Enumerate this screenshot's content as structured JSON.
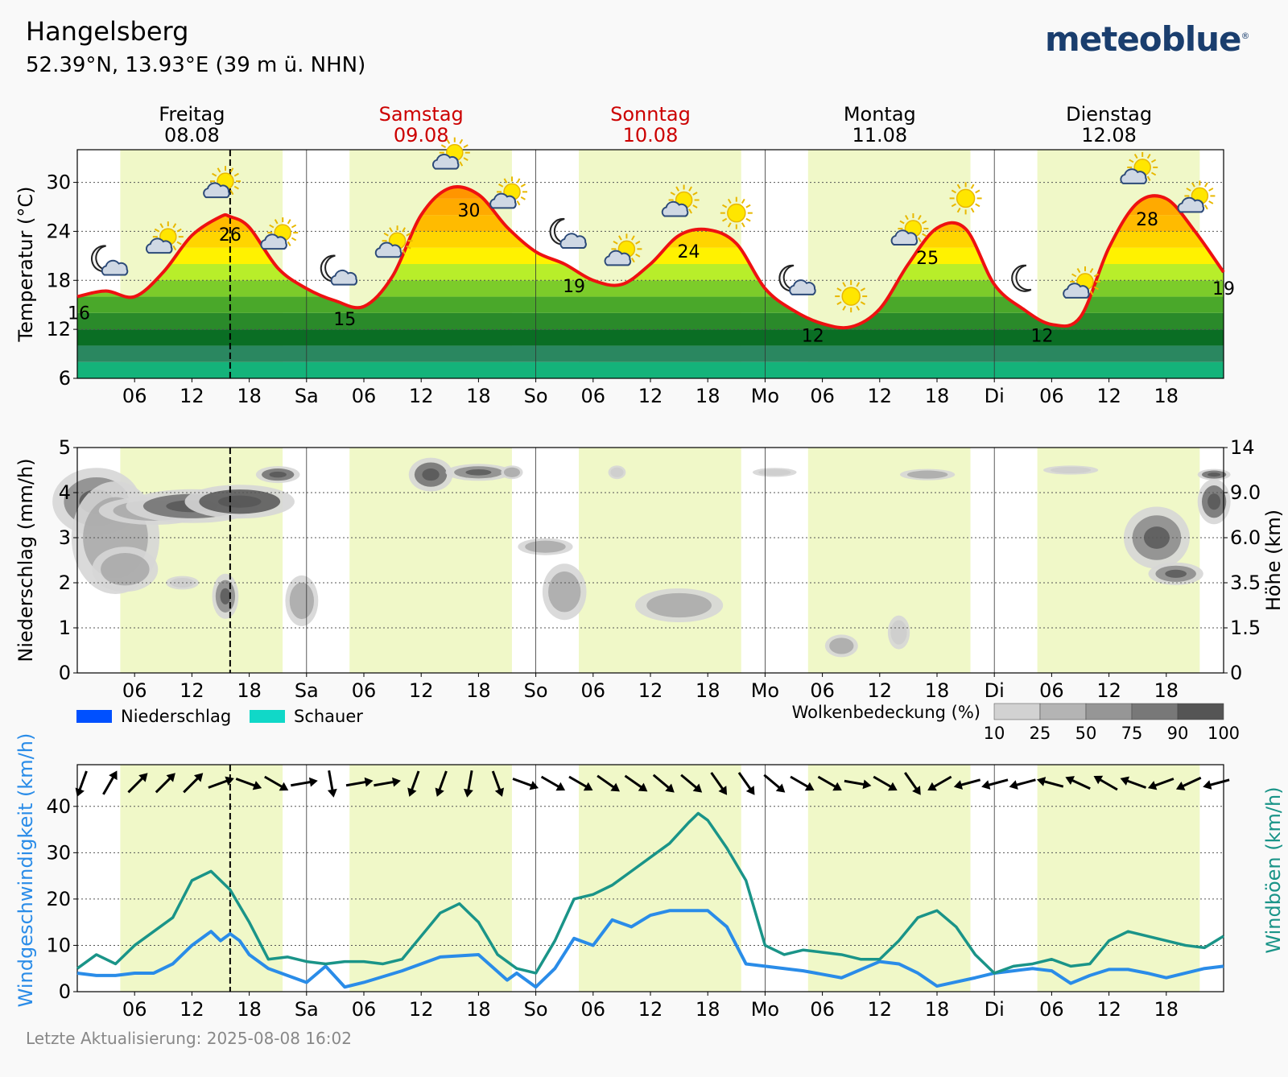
{
  "header": {
    "location": "Hangelsberg",
    "coordinates": "52.39°N, 13.93°E (39 m ü. NHN)",
    "logo": "meteoblue",
    "logo_mark": "®"
  },
  "footer": {
    "last_update": "Letzte Aktualisierung: 2025-08-08 16:02"
  },
  "colors": {
    "background": "#f9f9f9",
    "daylight": "#f0f8c8",
    "temp_line": "#ee1111",
    "weekend_label": "#cc0000",
    "wind_speed": "#2a8ce8",
    "wind_gust": "#1a9488",
    "precip": "#0050ff",
    "showers": "#10d8c8"
  },
  "days": [
    {
      "name": "Freitag",
      "date": "08.08",
      "weekend": false
    },
    {
      "name": "Samstag",
      "date": "09.08",
      "weekend": true
    },
    {
      "name": "Sonntag",
      "date": "10.08",
      "weekend": true
    },
    {
      "name": "Montag",
      "date": "11.08",
      "weekend": false
    },
    {
      "name": "Dienstag",
      "date": "12.08",
      "weekend": false
    }
  ],
  "x_tick_labels": [
    "06",
    "12",
    "18",
    "Sa",
    "06",
    "12",
    "18",
    "So",
    "06",
    "12",
    "18",
    "Mo",
    "06",
    "12",
    "18",
    "Di",
    "06",
    "12",
    "18"
  ],
  "now_marker_hour": 16,
  "daylight_hours": [
    [
      4.5,
      21.5
    ]
  ],
  "chart_data": [
    {
      "type": "line",
      "id": "temperature",
      "ylabel": "Temperatur (°C)",
      "ylim": [
        6,
        34
      ],
      "yticks": [
        6,
        12,
        18,
        24,
        30
      ],
      "x_unit": "hours since Friday 00:00",
      "x": [
        0,
        3,
        6,
        9,
        12,
        15,
        16,
        18,
        21,
        24,
        27,
        30,
        33,
        36,
        39,
        42,
        45,
        48,
        51,
        54,
        57,
        60,
        63,
        66,
        69,
        72,
        75,
        78,
        81,
        84,
        87,
        90,
        93,
        96,
        99,
        102,
        105,
        108,
        111,
        114,
        117,
        120
      ],
      "values": [
        16,
        16.7,
        16,
        19,
        23.5,
        25.8,
        25.8,
        24.5,
        19.5,
        17,
        15.5,
        14.8,
        18.5,
        26,
        29.3,
        28.5,
        24.5,
        21.5,
        20,
        18,
        17.5,
        20,
        23.5,
        24.2,
        22.5,
        17,
        14.3,
        12.7,
        12.3,
        14.5,
        20,
        24.4,
        24.3,
        17.5,
        14.5,
        12.6,
        13.5,
        22,
        27.5,
        28,
        24,
        19
      ],
      "labels": [
        {
          "hour": 0,
          "text": "16"
        },
        {
          "hour": 16,
          "text": "26"
        },
        {
          "hour": 28,
          "text": "15"
        },
        {
          "hour": 41,
          "text": "30"
        },
        {
          "hour": 52,
          "text": "19"
        },
        {
          "hour": 64,
          "text": "24"
        },
        {
          "hour": 77,
          "text": "12"
        },
        {
          "hour": 89,
          "text": "25"
        },
        {
          "hour": 101,
          "text": "12"
        },
        {
          "hour": 112,
          "text": "28"
        },
        {
          "hour": 120,
          "text": "19"
        }
      ],
      "icons": [
        {
          "hour": 3,
          "kind": "moon-cloud"
        },
        {
          "hour": 9,
          "kind": "sun-cloud"
        },
        {
          "hour": 15,
          "kind": "sun-cloud"
        },
        {
          "hour": 21,
          "kind": "sun-cloud"
        },
        {
          "hour": 27,
          "kind": "moon-cloud"
        },
        {
          "hour": 33,
          "kind": "sun-cloud"
        },
        {
          "hour": 39,
          "kind": "sun-cloud"
        },
        {
          "hour": 45,
          "kind": "sun-cloud"
        },
        {
          "hour": 51,
          "kind": "moon-cloud"
        },
        {
          "hour": 57,
          "kind": "sun-cloud"
        },
        {
          "hour": 63,
          "kind": "sun-cloud"
        },
        {
          "hour": 69,
          "kind": "sun"
        },
        {
          "hour": 75,
          "kind": "moon-cloud"
        },
        {
          "hour": 81,
          "kind": "sun"
        },
        {
          "hour": 87,
          "kind": "sun-cloud"
        },
        {
          "hour": 93,
          "kind": "sun"
        },
        {
          "hour": 99,
          "kind": "moon"
        },
        {
          "hour": 105,
          "kind": "sun-cloud"
        },
        {
          "hour": 111,
          "kind": "sun-cloud"
        },
        {
          "hour": 117,
          "kind": "sun-cloud"
        }
      ],
      "color_bands": [
        {
          "from": 6,
          "to": 8,
          "color": "#14b37a"
        },
        {
          "from": 8,
          "to": 10,
          "color": "#2a8760"
        },
        {
          "from": 10,
          "to": 12,
          "color": "#0a6e24"
        },
        {
          "from": 12,
          "to": 14,
          "color": "#2a8a2a"
        },
        {
          "from": 14,
          "to": 16,
          "color": "#4aa82a"
        },
        {
          "from": 16,
          "to": 18,
          "color": "#7ccc2a"
        },
        {
          "from": 18,
          "to": 20,
          "color": "#b8ee2a"
        },
        {
          "from": 20,
          "to": 22,
          "color": "#fff200"
        },
        {
          "from": 22,
          "to": 24,
          "color": "#ffd500"
        },
        {
          "from": 24,
          "to": 26,
          "color": "#ffbb00"
        },
        {
          "from": 26,
          "to": 28,
          "color": "#ffaa00"
        },
        {
          "from": 28,
          "to": 30,
          "color": "#ff9500"
        }
      ]
    },
    {
      "type": "heatmap",
      "id": "precipitation-clouds",
      "ylabel": "Niederschlag (mm/h)",
      "ylabel_right": "Höhe (km)",
      "ylim": [
        0,
        5
      ],
      "yticks": [
        0,
        1,
        2,
        3,
        4,
        5
      ],
      "right_ticks": [
        "0",
        "1.5",
        "3.5",
        "6.0",
        "9.0",
        "14"
      ],
      "legend": [
        {
          "label": "Niederschlag",
          "color": "#0050ff"
        },
        {
          "label": "Schauer",
          "color": "#10d8c8"
        }
      ],
      "cloud_legend_title": "Wolkenbedeckung (%)",
      "cloud_scale": [
        "10",
        "25",
        "50",
        "75",
        "90",
        "100"
      ],
      "cloud_scale_colors": [
        "#d2d2d2",
        "#b4b4b4",
        "#969696",
        "#787878",
        "#555555"
      ],
      "precipitation_values": [],
      "cloud_blobs": [
        {
          "hour": 2,
          "alt": 3.8,
          "rh": 4,
          "ra": 0.6,
          "cover": 75
        },
        {
          "hour": 4,
          "alt": 3.0,
          "rh": 4,
          "ra": 1.0,
          "cover": 50
        },
        {
          "hour": 5,
          "alt": 2.3,
          "rh": 3,
          "ra": 0.4,
          "cover": 50
        },
        {
          "hour": 8,
          "alt": 3.6,
          "rh": 5,
          "ra": 0.25,
          "cover": 50
        },
        {
          "hour": 12,
          "alt": 3.7,
          "rh": 6,
          "ra": 0.3,
          "cover": 90
        },
        {
          "hour": 17,
          "alt": 3.8,
          "rh": 5,
          "ra": 0.3,
          "cover": 100
        },
        {
          "hour": 21,
          "alt": 4.4,
          "rh": 2,
          "ra": 0.15,
          "cover": 90
        },
        {
          "hour": 15.5,
          "alt": 1.7,
          "rh": 1.2,
          "ra": 0.4,
          "cover": 75
        },
        {
          "hour": 23.5,
          "alt": 1.6,
          "rh": 1.5,
          "ra": 0.45,
          "cover": 50
        },
        {
          "hour": 11,
          "alt": 2.0,
          "rh": 1.5,
          "ra": 0.12,
          "cover": 25
        },
        {
          "hour": 37,
          "alt": 4.4,
          "rh": 2,
          "ra": 0.3,
          "cover": 90
        },
        {
          "hour": 42,
          "alt": 4.45,
          "rh": 3,
          "ra": 0.15,
          "cover": 75
        },
        {
          "hour": 45.5,
          "alt": 4.45,
          "rh": 1,
          "ra": 0.12,
          "cover": 50
        },
        {
          "hour": 49,
          "alt": 2.8,
          "rh": 2.5,
          "ra": 0.15,
          "cover": 50
        },
        {
          "hour": 51,
          "alt": 1.8,
          "rh": 2,
          "ra": 0.5,
          "cover": 50
        },
        {
          "hour": 56.5,
          "alt": 4.45,
          "rh": 0.8,
          "ra": 0.12,
          "cover": 25
        },
        {
          "hour": 63,
          "alt": 1.5,
          "rh": 4,
          "ra": 0.3,
          "cover": 50
        },
        {
          "hour": 73,
          "alt": 4.45,
          "rh": 2,
          "ra": 0.08,
          "cover": 25
        },
        {
          "hour": 89,
          "alt": 4.4,
          "rh": 2.5,
          "ra": 0.1,
          "cover": 50
        },
        {
          "hour": 80,
          "alt": 0.6,
          "rh": 1.5,
          "ra": 0.2,
          "cover": 50
        },
        {
          "hour": 86,
          "alt": 0.9,
          "rh": 1,
          "ra": 0.3,
          "cover": 25
        },
        {
          "hour": 104,
          "alt": 4.5,
          "rh": 2.5,
          "ra": 0.08,
          "cover": 25
        },
        {
          "hour": 113,
          "alt": 3.0,
          "rh": 3,
          "ra": 0.55,
          "cover": 75
        },
        {
          "hour": 115,
          "alt": 2.2,
          "rh": 2.5,
          "ra": 0.2,
          "cover": 75
        },
        {
          "hour": 119,
          "alt": 3.8,
          "rh": 1.5,
          "ra": 0.4,
          "cover": 90
        },
        {
          "hour": 119,
          "alt": 4.4,
          "rh": 1.5,
          "ra": 0.1,
          "cover": 90
        }
      ]
    },
    {
      "type": "line",
      "id": "wind",
      "ylabel": "Windgeschwindigkeit (km/h)",
      "ylabel_right": "Windböen (km/h)",
      "ylim": [
        0,
        49
      ],
      "yticks": [
        0,
        10,
        20,
        30,
        40
      ],
      "x_unit": "hours since Friday 00:00",
      "series": [
        {
          "name": "Windgeschwindigkeit (km/h)",
          "color": "#2a8ce8",
          "x": [
            0,
            2,
            4,
            6,
            8,
            10,
            12,
            14,
            15,
            16,
            17,
            18,
            20,
            24,
            26,
            28,
            30,
            34,
            38,
            42,
            45,
            46,
            48,
            50,
            52,
            54,
            56,
            58,
            60,
            62,
            64,
            66,
            68,
            70,
            72,
            76,
            80,
            84,
            86,
            88,
            90,
            94,
            96,
            98,
            100,
            102,
            104,
            106,
            108,
            110,
            112,
            114,
            116,
            118,
            120
          ],
          "values": [
            4,
            3.5,
            3.5,
            4,
            4,
            6,
            10,
            13,
            11,
            12.5,
            11,
            8,
            5,
            2,
            5.5,
            1,
            2,
            4.5,
            7.5,
            8,
            2.5,
            4,
            1,
            5,
            11.5,
            10,
            15.5,
            14,
            16.5,
            17.5,
            17.5,
            17.5,
            14,
            6,
            5.5,
            4.5,
            3,
            6.5,
            6,
            4,
            1.2,
            3,
            4,
            4.5,
            5,
            4.5,
            1.8,
            3.5,
            4.8,
            4.8,
            4,
            3,
            4,
            5,
            5.5
          ]
        },
        {
          "name": "Windböen (km/h)",
          "color": "#1a9488",
          "x": [
            0,
            2,
            4,
            6,
            8,
            10,
            12,
            14,
            16,
            18,
            20,
            22,
            24,
            26,
            28,
            30,
            32,
            34,
            36,
            38,
            40,
            42,
            44,
            46,
            48,
            50,
            52,
            54,
            56,
            58,
            60,
            62,
            64,
            65,
            66,
            68,
            70,
            72,
            74,
            76,
            78,
            80,
            82,
            84,
            86,
            88,
            90,
            92,
            94,
            96,
            98,
            100,
            102,
            104,
            106,
            108,
            110,
            112,
            114,
            116,
            118,
            120
          ],
          "values": [
            5,
            8,
            6,
            10,
            13,
            16,
            24,
            26,
            22,
            15,
            7,
            7.5,
            6.5,
            6,
            6.5,
            6.5,
            6,
            7,
            12,
            17,
            19,
            15,
            8,
            5,
            4,
            11,
            20,
            21,
            23,
            26,
            29,
            32,
            36.5,
            38.5,
            37,
            31,
            24,
            10,
            8,
            9,
            8.5,
            8,
            7,
            7,
            11,
            16,
            17.5,
            14,
            8,
            4,
            5.5,
            6,
            7,
            5.5,
            6,
            11,
            13,
            12,
            11,
            10,
            9.5,
            12
          ]
        }
      ],
      "arrows_deg": [
        200,
        30,
        45,
        45,
        45,
        70,
        110,
        120,
        80,
        170,
        80,
        80,
        200,
        200,
        190,
        160,
        110,
        120,
        120,
        125,
        125,
        130,
        130,
        145,
        145,
        130,
        120,
        120,
        100,
        120,
        145,
        240,
        255,
        255,
        255,
        285,
        295,
        300,
        290,
        250,
        245,
        255
      ]
    }
  ]
}
